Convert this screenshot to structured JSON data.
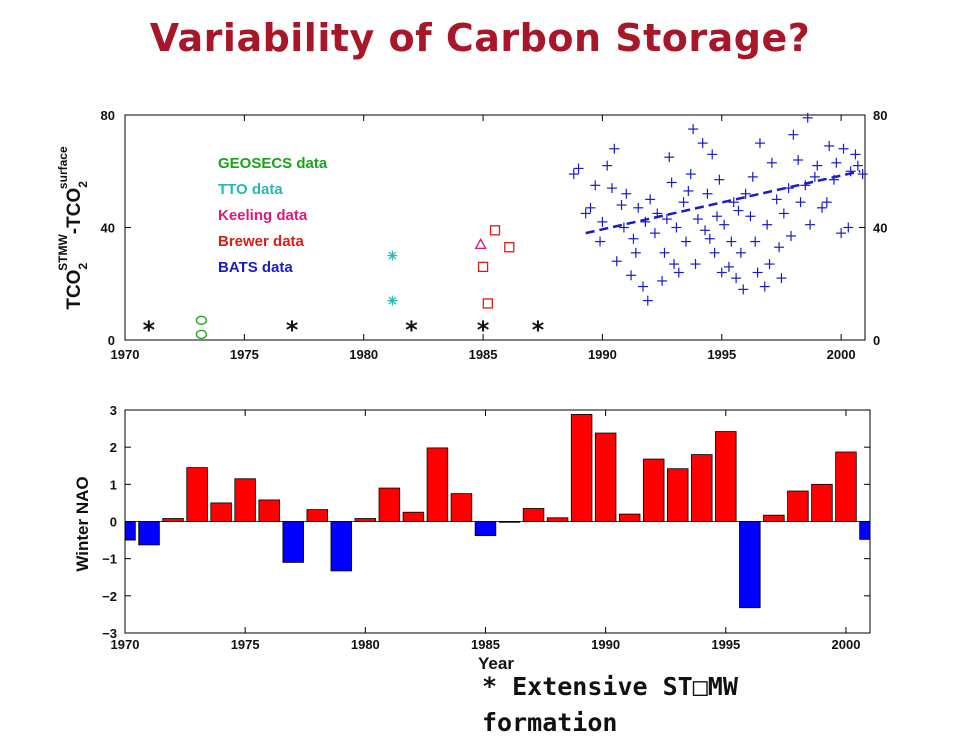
{
  "slide": {
    "title": "Variability of Carbon Storage?",
    "footnote_line1": "* Extensive ST□MW",
    "footnote_line2": "formation"
  },
  "colors": {
    "title": "#a8162a",
    "geosecs": "#1aa31a",
    "tto": "#22b8b8",
    "keeling": "#e0187a",
    "brewer": "#dd1b12",
    "bats": "#1a1acc",
    "nao_positive": "#ff0000",
    "nao_negative": "#0000ff"
  },
  "chart_data": [
    {
      "type": "scatter",
      "ylabel_main": "TCO",
      "ylabel_sub1": "2",
      "ylabel_sup1": "STMW",
      "ylabel_mid": "-TCO",
      "ylabel_sub2": "2",
      "ylabel_sup2": "surface",
      "xlim": [
        1970,
        2001
      ],
      "ylim": [
        0,
        80
      ],
      "xticks": [
        "1970",
        "1975",
        "1980",
        "1985",
        "1990",
        "1995",
        "2000"
      ],
      "yticks_left": [
        "0",
        "40",
        "80"
      ],
      "yticks_right": [
        "0",
        "40",
        "80"
      ],
      "legend": [
        {
          "label": "GEOSECS data",
          "color": "#1aa31a"
        },
        {
          "label": "TTO data",
          "color": "#22b8b8"
        },
        {
          "label": "Keeling data",
          "color": "#e0187a"
        },
        {
          "label": "Brewer data",
          "color": "#dd1b12"
        },
        {
          "label": "BATS data",
          "color": "#1a1acc"
        }
      ],
      "stmw_years": [
        1971,
        1977,
        1982,
        1985,
        1987.3
      ],
      "series": [
        {
          "name": "GEOSECS data",
          "marker": "circle",
          "points": [
            [
              1973.2,
              7
            ],
            [
              1973.2,
              2
            ]
          ]
        },
        {
          "name": "TTO data",
          "marker": "asterisk",
          "points": [
            [
              1981.2,
              30
            ],
            [
              1981.2,
              14
            ]
          ]
        },
        {
          "name": "Keeling data",
          "marker": "triangle",
          "points": [
            [
              1984.9,
              34
            ]
          ]
        },
        {
          "name": "Brewer data",
          "marker": "square",
          "points": [
            [
              1985.5,
              39
            ],
            [
              1986.1,
              33
            ],
            [
              1985.0,
              26
            ],
            [
              1985.2,
              13
            ]
          ]
        },
        {
          "name": "BATS data",
          "marker": "plus",
          "points": [
            [
              1988.8,
              59
            ],
            [
              1989.0,
              61
            ],
            [
              1989.3,
              45
            ],
            [
              1989.5,
              47
            ],
            [
              1989.7,
              55
            ],
            [
              1989.9,
              35
            ],
            [
              1990.0,
              42
            ],
            [
              1990.2,
              62
            ],
            [
              1990.4,
              54
            ],
            [
              1990.5,
              68
            ],
            [
              1990.6,
              28
            ],
            [
              1990.8,
              48
            ],
            [
              1990.9,
              40
            ],
            [
              1991.0,
              52
            ],
            [
              1991.2,
              23
            ],
            [
              1991.3,
              36
            ],
            [
              1991.4,
              31
            ],
            [
              1991.5,
              47
            ],
            [
              1991.7,
              19
            ],
            [
              1991.8,
              42
            ],
            [
              1991.9,
              14
            ],
            [
              1992.0,
              50
            ],
            [
              1992.2,
              38
            ],
            [
              1992.3,
              45
            ],
            [
              1992.5,
              21
            ],
            [
              1992.6,
              31
            ],
            [
              1992.7,
              43
            ],
            [
              1992.8,
              65
            ],
            [
              1992.9,
              56
            ],
            [
              1993.0,
              27
            ],
            [
              1993.1,
              40
            ],
            [
              1993.2,
              24
            ],
            [
              1993.4,
              49
            ],
            [
              1993.5,
              35
            ],
            [
              1993.6,
              53
            ],
            [
              1993.7,
              59
            ],
            [
              1993.8,
              75
            ],
            [
              1993.9,
              27
            ],
            [
              1994.0,
              43
            ],
            [
              1994.2,
              70
            ],
            [
              1994.3,
              39
            ],
            [
              1994.4,
              52
            ],
            [
              1994.5,
              36
            ],
            [
              1994.6,
              66
            ],
            [
              1994.7,
              31
            ],
            [
              1994.8,
              44
            ],
            [
              1994.9,
              57
            ],
            [
              1995.0,
              24
            ],
            [
              1995.1,
              41
            ],
            [
              1995.3,
              26
            ],
            [
              1995.4,
              35
            ],
            [
              1995.5,
              49
            ],
            [
              1995.6,
              22
            ],
            [
              1995.7,
              46
            ],
            [
              1995.8,
              31
            ],
            [
              1995.9,
              18
            ],
            [
              1996.0,
              52
            ],
            [
              1996.2,
              44
            ],
            [
              1996.3,
              58
            ],
            [
              1996.4,
              35
            ],
            [
              1996.5,
              24
            ],
            [
              1996.6,
              70
            ],
            [
              1996.8,
              19
            ],
            [
              1996.9,
              41
            ],
            [
              1997.0,
              27
            ],
            [
              1997.1,
              63
            ],
            [
              1997.3,
              50
            ],
            [
              1997.4,
              33
            ],
            [
              1997.5,
              22
            ],
            [
              1997.6,
              45
            ],
            [
              1997.8,
              54
            ],
            [
              1997.9,
              37
            ],
            [
              1998.0,
              73
            ],
            [
              1998.2,
              64
            ],
            [
              1998.3,
              49
            ],
            [
              1998.5,
              55
            ],
            [
              1998.6,
              79
            ],
            [
              1998.7,
              41
            ],
            [
              1998.9,
              58
            ],
            [
              1999.0,
              62
            ],
            [
              1999.2,
              47
            ],
            [
              1999.4,
              49
            ],
            [
              1999.5,
              69
            ],
            [
              1999.7,
              57
            ],
            [
              1999.8,
              63
            ],
            [
              2000.0,
              38
            ],
            [
              2000.1,
              68
            ],
            [
              2000.3,
              40
            ],
            [
              2000.4,
              60
            ],
            [
              2000.6,
              66
            ],
            [
              2000.7,
              62
            ],
            [
              2000.9,
              59
            ]
          ]
        }
      ],
      "trend_line": {
        "x": [
          1989.3,
          2000.8
        ],
        "y": [
          38,
          60
        ]
      }
    },
    {
      "type": "bar",
      "ylabel": "Winter NAO",
      "xlabel": "Year",
      "xlim": [
        1970,
        2001
      ],
      "ylim": [
        -3,
        3
      ],
      "xticks": [
        "1970",
        "1975",
        "1980",
        "1985",
        "1990",
        "1995",
        "2000"
      ],
      "yticks": [
        "-3",
        "-2",
        "-1",
        "0",
        "1",
        "2",
        "3"
      ],
      "years": [
        1970,
        1971,
        1972,
        1973,
        1974,
        1975,
        1976,
        1977,
        1978,
        1979,
        1980,
        1981,
        1982,
        1983,
        1984,
        1985,
        1986,
        1987,
        1988,
        1989,
        1990,
        1991,
        1992,
        1993,
        1994,
        1995,
        1996,
        1997,
        1998,
        1999,
        2000,
        2001
      ],
      "values": [
        -0.5,
        -0.63,
        0.08,
        1.45,
        0.5,
        1.15,
        0.58,
        -1.1,
        0.32,
        -1.33,
        0.08,
        0.9,
        0.25,
        1.98,
        0.75,
        -0.38,
        -0.02,
        0.35,
        0.1,
        2.88,
        2.38,
        0.2,
        1.68,
        1.42,
        1.8,
        2.42,
        -2.32,
        0.17,
        0.82,
        1.0,
        1.87,
        -0.48
      ]
    }
  ]
}
